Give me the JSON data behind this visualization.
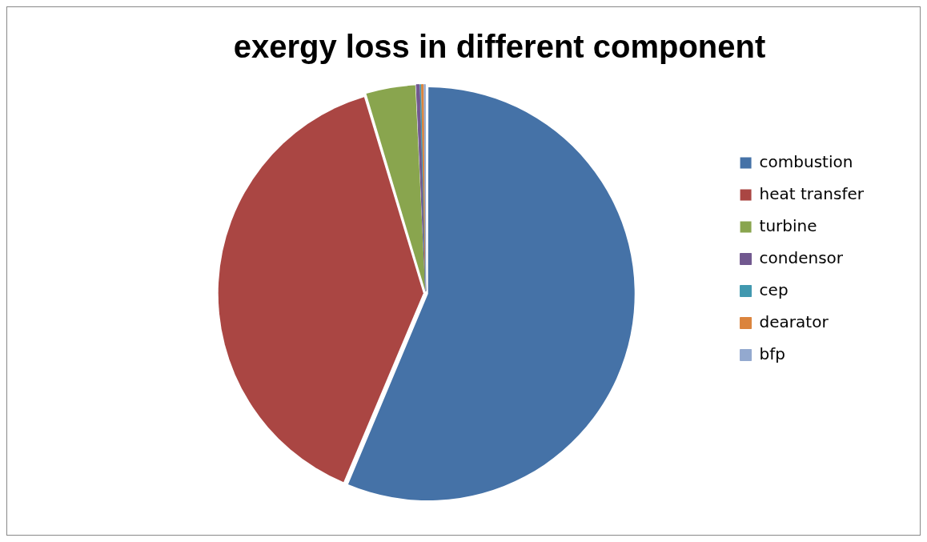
{
  "chart_data": {
    "type": "pie",
    "title": "exergy loss in different component",
    "categories": [
      "combustion",
      "heat transfer",
      "turbine",
      "condensor",
      "cep",
      "dearator",
      "bfp"
    ],
    "values": [
      56.35,
      39.0,
      3.9,
      0.3,
      0.1,
      0.2,
      0.15
    ],
    "colors": [
      "#4572a7",
      "#aa4643",
      "#89a54e",
      "#71588f",
      "#4198af",
      "#db843d",
      "#93a9cf"
    ],
    "legend": "right"
  }
}
